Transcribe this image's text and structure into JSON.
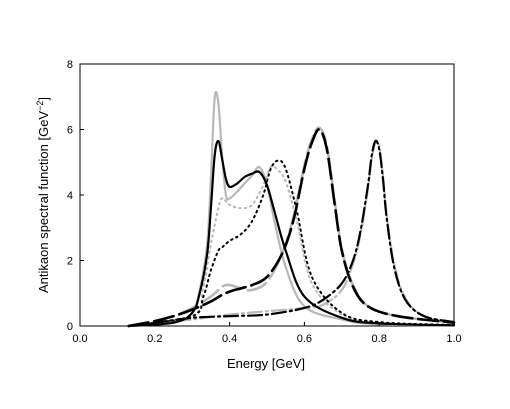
{
  "chart_data": {
    "type": "line",
    "xlabel": "Energy [GeV]",
    "ylabel_main": "Antikaon spectral function [GeV",
    "ylabel_sup": "−2",
    "ylabel_end": "]",
    "xlim": [
      0.0,
      1.0
    ],
    "ylim": [
      0,
      8
    ],
    "xticks": [
      0.0,
      0.2,
      0.4,
      0.6,
      0.8,
      1.0
    ],
    "xtick_labels": [
      "0.0",
      "0.2",
      "0.4",
      "0.6",
      "0.8",
      "1.0"
    ],
    "yticks": [
      0,
      2,
      4,
      6,
      8
    ],
    "ytick_labels": [
      "0",
      "2",
      "4",
      "6",
      "8"
    ],
    "grid": false,
    "series": [
      {
        "style": "black-solid",
        "x": [
          0.13,
          0.25,
          0.3,
          0.32,
          0.34,
          0.35,
          0.36,
          0.37,
          0.38,
          0.39,
          0.4,
          0.42,
          0.44,
          0.46,
          0.48,
          0.5,
          0.52,
          0.55,
          0.6,
          0.7,
          0.8,
          1.0
        ],
        "y": [
          0,
          0.1,
          0.4,
          1.0,
          2.2,
          3.6,
          5.2,
          5.65,
          5.1,
          4.5,
          4.25,
          4.35,
          4.55,
          4.65,
          4.7,
          4.3,
          3.5,
          2.3,
          0.9,
          0.25,
          0.08,
          0.02
        ]
      },
      {
        "style": "gray-solid",
        "x": [
          0.13,
          0.25,
          0.3,
          0.32,
          0.34,
          0.35,
          0.36,
          0.37,
          0.38,
          0.39,
          0.4,
          0.42,
          0.44,
          0.46,
          0.48,
          0.5,
          0.52,
          0.55,
          0.6,
          0.7,
          0.8,
          1.0
        ],
        "y": [
          0,
          0.1,
          0.4,
          1.1,
          2.5,
          4.5,
          6.95,
          6.8,
          5.2,
          4.0,
          3.9,
          4.1,
          4.35,
          4.6,
          4.85,
          4.3,
          3.2,
          1.8,
          0.6,
          0.2,
          0.05,
          0.02
        ]
      },
      {
        "style": "black-dotted",
        "x": [
          0.13,
          0.3,
          0.33,
          0.35,
          0.37,
          0.38,
          0.4,
          0.43,
          0.46,
          0.49,
          0.51,
          0.53,
          0.55,
          0.58,
          0.62,
          0.7,
          0.8,
          1.0
        ],
        "y": [
          0,
          0.3,
          0.9,
          1.7,
          2.3,
          2.4,
          2.6,
          2.8,
          3.2,
          4.0,
          4.8,
          5.05,
          4.8,
          3.5,
          1.5,
          0.4,
          0.12,
          0.03
        ]
      },
      {
        "style": "gray-dotted",
        "x": [
          0.13,
          0.3,
          0.33,
          0.35,
          0.37,
          0.38,
          0.4,
          0.43,
          0.46,
          0.49,
          0.51,
          0.53,
          0.55,
          0.58,
          0.62,
          0.7,
          0.8,
          1.0
        ],
        "y": [
          0,
          0.3,
          1.2,
          2.5,
          3.6,
          3.9,
          3.7,
          3.6,
          3.7,
          4.3,
          4.85,
          4.75,
          4.4,
          3.2,
          1.3,
          0.35,
          0.1,
          0.03
        ]
      },
      {
        "style": "black-dashed",
        "x": [
          0.13,
          0.2,
          0.25,
          0.3,
          0.35,
          0.38,
          0.4,
          0.43,
          0.46,
          0.5,
          0.54,
          0.57,
          0.6,
          0.62,
          0.64,
          0.66,
          0.68,
          0.7,
          0.73,
          0.77,
          0.85,
          1.0
        ],
        "y": [
          0,
          0.15,
          0.3,
          0.5,
          0.75,
          0.95,
          1.05,
          1.15,
          1.25,
          1.5,
          2.2,
          3.2,
          4.8,
          5.6,
          6.0,
          5.4,
          3.8,
          2.3,
          1.2,
          0.6,
          0.3,
          0.1
        ]
      },
      {
        "style": "gray-dashed",
        "x": [
          0.13,
          0.2,
          0.25,
          0.3,
          0.35,
          0.38,
          0.4,
          0.43,
          0.46,
          0.5,
          0.54,
          0.57,
          0.6,
          0.62,
          0.64,
          0.66,
          0.68,
          0.7,
          0.73,
          0.77,
          0.85,
          1.0
        ],
        "y": [
          0,
          0.15,
          0.3,
          0.55,
          0.9,
          1.2,
          1.25,
          1.15,
          1.1,
          1.35,
          2.2,
          3.3,
          4.9,
          5.7,
          6.05,
          5.5,
          3.9,
          2.35,
          1.25,
          0.6,
          0.3,
          0.1
        ]
      },
      {
        "style": "black-dashdot",
        "x": [
          0.13,
          0.2,
          0.3,
          0.4,
          0.5,
          0.6,
          0.65,
          0.7,
          0.73,
          0.75,
          0.77,
          0.78,
          0.79,
          0.8,
          0.81,
          0.82,
          0.84,
          0.87,
          0.92,
          1.0
        ],
        "y": [
          0,
          0.1,
          0.25,
          0.3,
          0.35,
          0.55,
          0.8,
          1.3,
          2.0,
          2.9,
          4.3,
          5.2,
          5.65,
          5.4,
          4.5,
          3.3,
          1.8,
          0.8,
          0.3,
          0.12
        ]
      },
      {
        "style": "gray-dashdot",
        "x": [
          0.13,
          0.2,
          0.3,
          0.4,
          0.5,
          0.6,
          0.65,
          0.7,
          0.73,
          0.75,
          0.77,
          0.78,
          0.79,
          0.8,
          0.81,
          0.82,
          0.84,
          0.87,
          0.92,
          1.0
        ],
        "y": [
          0,
          0.1,
          0.2,
          0.35,
          0.45,
          0.55,
          0.65,
          1.1,
          1.9,
          2.8,
          4.2,
          5.1,
          5.6,
          5.5,
          4.6,
          3.4,
          1.9,
          0.85,
          0.3,
          0.12
        ]
      }
    ]
  }
}
